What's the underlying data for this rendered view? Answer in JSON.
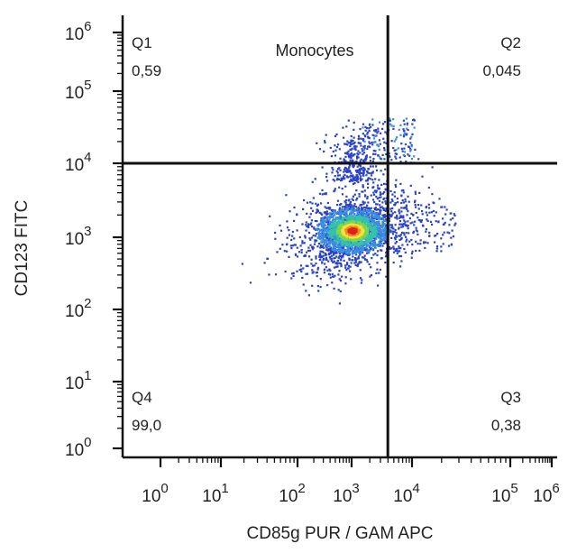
{
  "chart_data": {
    "type": "scatter",
    "title": "Monocytes",
    "xlabel": "CD85g PUR / GAM APC",
    "ylabel": "CD123 FITC",
    "x_scale": "log",
    "y_scale": "log",
    "x_ticks": [
      {
        "base": "10",
        "exp": "0"
      },
      {
        "base": "10",
        "exp": "1"
      },
      {
        "base": "10",
        "exp": "2"
      },
      {
        "base": "10",
        "exp": "3"
      },
      {
        "base": "10",
        "exp": "4"
      },
      {
        "base": "10",
        "exp": "5"
      },
      {
        "base": "10",
        "exp": "6"
      }
    ],
    "y_ticks": [
      {
        "base": "10",
        "exp": "0"
      },
      {
        "base": "10",
        "exp": "1"
      },
      {
        "base": "10",
        "exp": "2"
      },
      {
        "base": "10",
        "exp": "3"
      },
      {
        "base": "10",
        "exp": "4"
      },
      {
        "base": "10",
        "exp": "5"
      },
      {
        "base": "10",
        "exp": "6"
      }
    ],
    "gate": {
      "x": 3.6,
      "y": 4.0
    },
    "quadrants": [
      {
        "name": "Q1",
        "value": "0,59"
      },
      {
        "name": "Q2",
        "value": "0,045"
      },
      {
        "name": "Q3",
        "value": "0,38"
      },
      {
        "name": "Q4",
        "value": "99,0"
      }
    ],
    "population": {
      "center": [
        3.0,
        3.1
      ],
      "color_scale": [
        "#2a3fbf",
        "#3a8de0",
        "#34c2a8",
        "#7ed64a",
        "#f2e23a",
        "#f28a1e",
        "#e02020"
      ]
    }
  }
}
